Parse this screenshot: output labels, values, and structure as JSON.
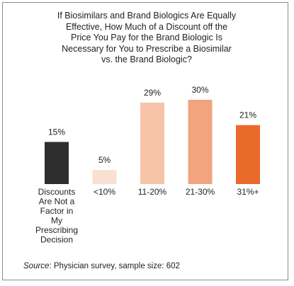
{
  "chart_data": {
    "type": "bar",
    "title": "If Biosimilars and Brand Biologics Are Equally\nEffective, How Much of a Discount off the\nPrice You Pay for the Brand Biologic Is\nNecessary for You to Prescribe a Biosimilar\nvs. the Brand Biologic?",
    "categories": [
      "Discounts\nAre Not a\nFactor in\nMy\nPrescribing\nDecision",
      "<10%",
      "11-20%",
      "21-30%",
      "31%+"
    ],
    "values": [
      15,
      5,
      29,
      30,
      21
    ],
    "data_labels": [
      "15%",
      "5%",
      "29%",
      "30%",
      "21%"
    ],
    "colors": [
      "#2e2e2e",
      "#f9e0d2",
      "#f6c4a8",
      "#f2a47e",
      "#ea6a2b"
    ],
    "xlabel": "",
    "ylabel": "",
    "ylim": [
      0,
      30
    ],
    "grid": false,
    "legend": "none"
  },
  "source": {
    "label": "Source",
    "text": ": Physician survey, sample size: 602"
  }
}
